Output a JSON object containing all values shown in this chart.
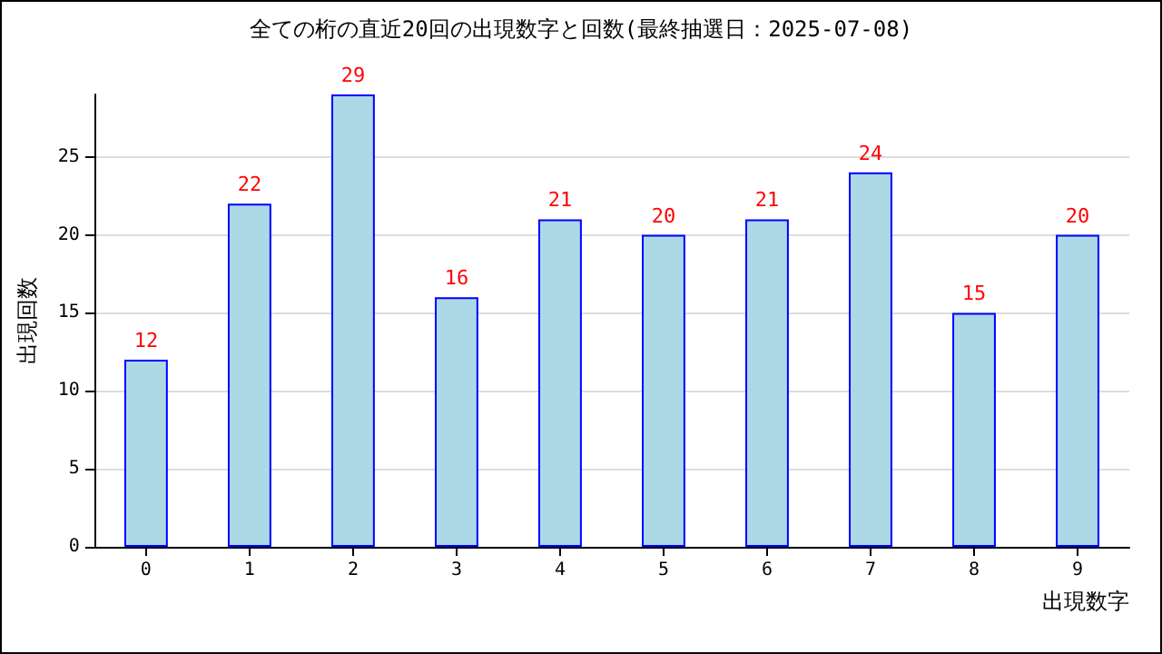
{
  "chart_data": {
    "type": "bar",
    "title": "全ての桁の直近20回の出現数字と回数(最終抽選日：2025-07-08)",
    "xlabel": "出現数字",
    "ylabel": "出現回数",
    "categories": [
      "0",
      "1",
      "2",
      "3",
      "4",
      "5",
      "6",
      "7",
      "8",
      "9"
    ],
    "values": [
      12,
      22,
      29,
      16,
      21,
      20,
      21,
      24,
      15,
      20
    ],
    "color": "#add8e6",
    "ylim": [
      0,
      29
    ],
    "yticks": [
      0,
      5,
      10,
      15,
      20,
      25
    ],
    "grid": "y",
    "data_labels": true
  }
}
